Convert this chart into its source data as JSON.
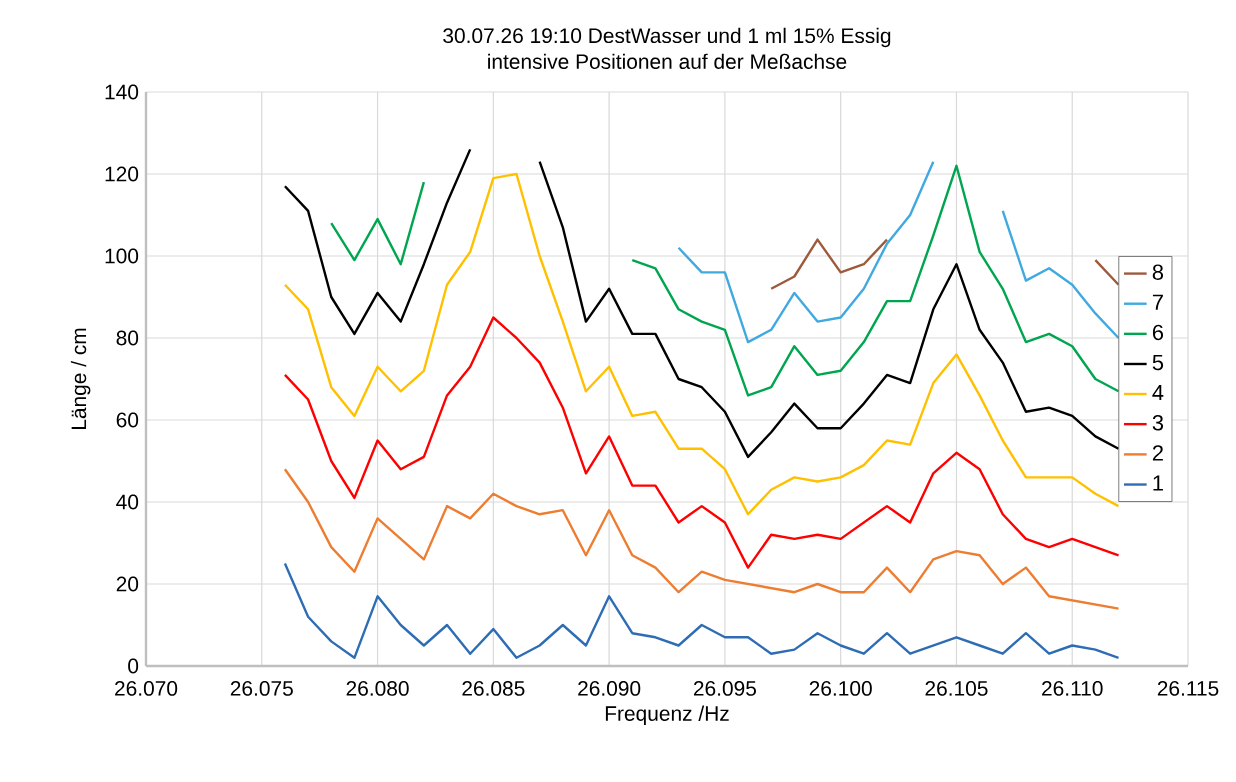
{
  "chart_data": {
    "type": "line",
    "title": "30.07.26 19:10  DestWasser und 1 ml 15% Essig",
    "subtitle": "intensive Positionen auf der Meßachse",
    "xlabel": "Frequenz /Hz",
    "ylabel": "Länge / cm",
    "x": [
      26.076,
      26.077,
      26.078,
      26.079,
      26.08,
      26.081,
      26.082,
      26.083,
      26.084,
      26.085,
      26.086,
      26.087,
      26.088,
      26.089,
      26.09,
      26.091,
      26.092,
      26.093,
      26.094,
      26.095,
      26.096,
      26.097,
      26.098,
      26.099,
      26.1,
      26.101,
      26.102,
      26.103,
      26.104,
      26.105,
      26.106,
      26.107,
      26.108,
      26.109,
      26.11,
      26.111,
      26.112
    ],
    "series": [
      {
        "name": "1",
        "color": "#2e6db4",
        "values": [
          25,
          12,
          6,
          2,
          17,
          10,
          5,
          10,
          3,
          9,
          2,
          5,
          10,
          5,
          17,
          8,
          7,
          5,
          10,
          7,
          7,
          3,
          4,
          8,
          5,
          3,
          8,
          3,
          5,
          7,
          5,
          3,
          8,
          3,
          5,
          4,
          2
        ]
      },
      {
        "name": "2",
        "color": "#ed7d31",
        "values": [
          48,
          40,
          29,
          23,
          36,
          31,
          26,
          39,
          36,
          42,
          39,
          37,
          38,
          27,
          38,
          27,
          24,
          18,
          23,
          21,
          20,
          19,
          18,
          20,
          18,
          18,
          24,
          18,
          26,
          28,
          27,
          20,
          24,
          17,
          16,
          15,
          14
        ]
      },
      {
        "name": "3",
        "color": "#ff0000",
        "values": [
          71,
          65,
          50,
          41,
          55,
          48,
          51,
          66,
          73,
          85,
          80,
          74,
          63,
          47,
          56,
          44,
          44,
          35,
          39,
          35,
          24,
          32,
          31,
          32,
          31,
          35,
          39,
          35,
          47,
          52,
          48,
          37,
          31,
          29,
          31,
          29,
          27
        ]
      },
      {
        "name": "4",
        "color": "#ffc000",
        "values": [
          93,
          87,
          68,
          61,
          73,
          67,
          72,
          93,
          101,
          119,
          120,
          100,
          84,
          67,
          73,
          61,
          62,
          53,
          53,
          48,
          37,
          43,
          46,
          45,
          46,
          49,
          55,
          54,
          69,
          76,
          66,
          55,
          46,
          46,
          46,
          42,
          39
        ]
      },
      {
        "name": "5",
        "color": "#000000",
        "values": [
          117,
          111,
          90,
          81,
          91,
          84,
          98,
          113,
          126,
          null,
          null,
          123,
          107,
          84,
          92,
          81,
          81,
          70,
          68,
          62,
          51,
          57,
          64,
          58,
          58,
          64,
          71,
          69,
          87,
          98,
          82,
          74,
          62,
          63,
          61,
          56,
          53
        ]
      },
      {
        "name": "6",
        "color": "#00a550",
        "values": [
          null,
          null,
          108,
          99,
          109,
          98,
          118,
          null,
          null,
          null,
          null,
          null,
          null,
          null,
          null,
          99,
          97,
          87,
          84,
          82,
          66,
          68,
          78,
          71,
          72,
          79,
          89,
          89,
          105,
          122,
          101,
          92,
          79,
          81,
          78,
          70,
          67
        ]
      },
      {
        "name": "7",
        "color": "#3fa9e0",
        "values": [
          null,
          null,
          null,
          null,
          null,
          null,
          null,
          null,
          null,
          null,
          null,
          null,
          null,
          null,
          null,
          null,
          null,
          102,
          96,
          96,
          79,
          82,
          91,
          84,
          85,
          92,
          103,
          110,
          123,
          null,
          null,
          111,
          94,
          97,
          93,
          86,
          80
        ]
      },
      {
        "name": "8",
        "color": "#9c5b3c",
        "values": [
          null,
          null,
          null,
          null,
          null,
          null,
          null,
          null,
          null,
          null,
          null,
          null,
          null,
          null,
          null,
          null,
          null,
          null,
          null,
          null,
          null,
          92,
          95,
          104,
          96,
          98,
          104,
          null,
          null,
          null,
          null,
          null,
          null,
          null,
          null,
          99,
          93
        ]
      }
    ],
    "xlim": [
      26.07,
      26.115
    ],
    "xticks": [
      {
        "value": 26.07,
        "label": "26.070"
      },
      {
        "value": 26.075,
        "label": "26.075"
      },
      {
        "value": 26.08,
        "label": "26.080"
      },
      {
        "value": 26.085,
        "label": "26.085"
      },
      {
        "value": 26.09,
        "label": "26.090"
      },
      {
        "value": 26.095,
        "label": "26.095"
      },
      {
        "value": 26.1,
        "label": "26.100"
      },
      {
        "value": 26.105,
        "label": "26.105"
      },
      {
        "value": 26.11,
        "label": "26.110"
      },
      {
        "value": 26.115,
        "label": "26.115"
      }
    ],
    "ylim": [
      0,
      140
    ],
    "yticks": [
      0,
      20,
      40,
      60,
      80,
      100,
      120,
      140
    ],
    "grid": true,
    "legend": "right",
    "marker": "none",
    "line_style": "solid"
  }
}
